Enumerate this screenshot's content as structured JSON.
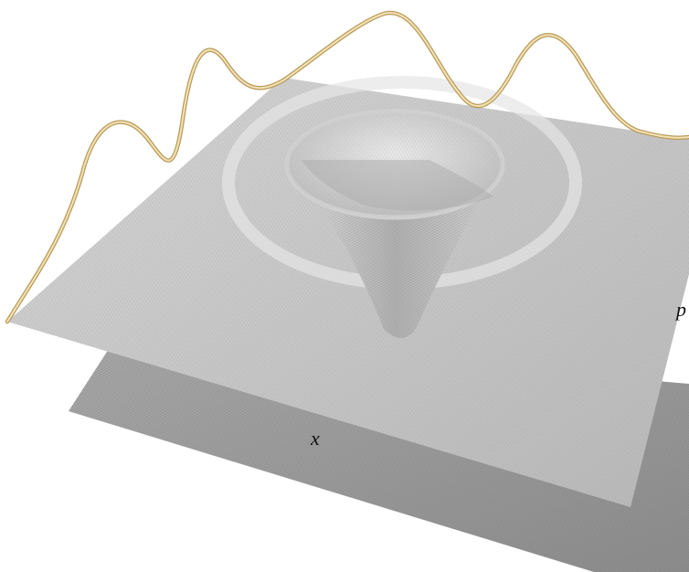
{
  "axes": {
    "x_label": "x",
    "p_label": "p"
  }
}
